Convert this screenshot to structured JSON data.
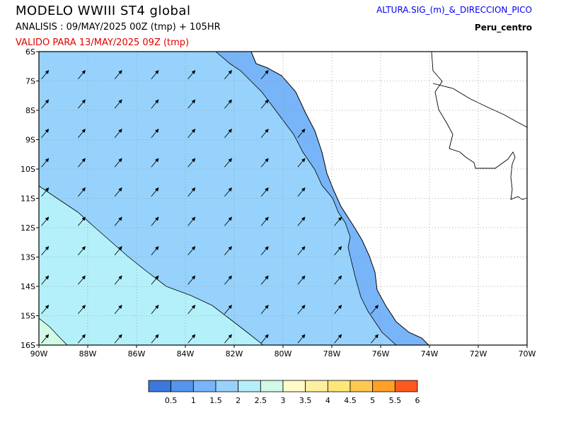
{
  "header": {
    "title": "MODELO  WWIII  ST4  global",
    "analysis": "ANALISIS : 09/MAY/2025 00Z  (tmp) + 105HR",
    "valid": "VALIDO PARA  13/MAY/2025 09Z  (tmp)",
    "variable": "ALTURA.SIG_(m)_&_DIRECCION_PICO",
    "region": "Peru_centro"
  },
  "map": {
    "lat_labels": [
      "6S",
      "7S",
      "8S",
      "9S",
      "10S",
      "11S",
      "12S",
      "13S",
      "14S",
      "15S",
      "16S"
    ],
    "lat_values": [
      -6,
      -7,
      -8,
      -9,
      -10,
      -11,
      -12,
      -13,
      -14,
      -15,
      -16
    ],
    "lon_labels": [
      "90W",
      "88W",
      "86W",
      "84W",
      "82W",
      "80W",
      "78W",
      "76W",
      "74W",
      "72W",
      "70W"
    ],
    "lon_values": [
      -90,
      -88,
      -86,
      -84,
      -82,
      -80,
      -78,
      -76,
      -74,
      -72,
      -70
    ],
    "lon_range": [
      -90,
      -70
    ],
    "lat_range": [
      -16,
      -6
    ],
    "grid": "dotted",
    "arrow_direction": "northeast"
  },
  "legend": {
    "labels": [
      "0.5",
      "1",
      "1.5",
      "2",
      "2.5",
      "3",
      "3.5",
      "4",
      "4.5",
      "5",
      "5.5",
      "6"
    ],
    "colors": [
      "#3a78dc",
      "#5596ec",
      "#78b4f8",
      "#96d2fc",
      "#b4f0fa",
      "#d2fae6",
      "#fffac8",
      "#fff0a0",
      "#ffe678",
      "#ffc850",
      "#ffa028",
      "#ff5a1e"
    ]
  }
}
